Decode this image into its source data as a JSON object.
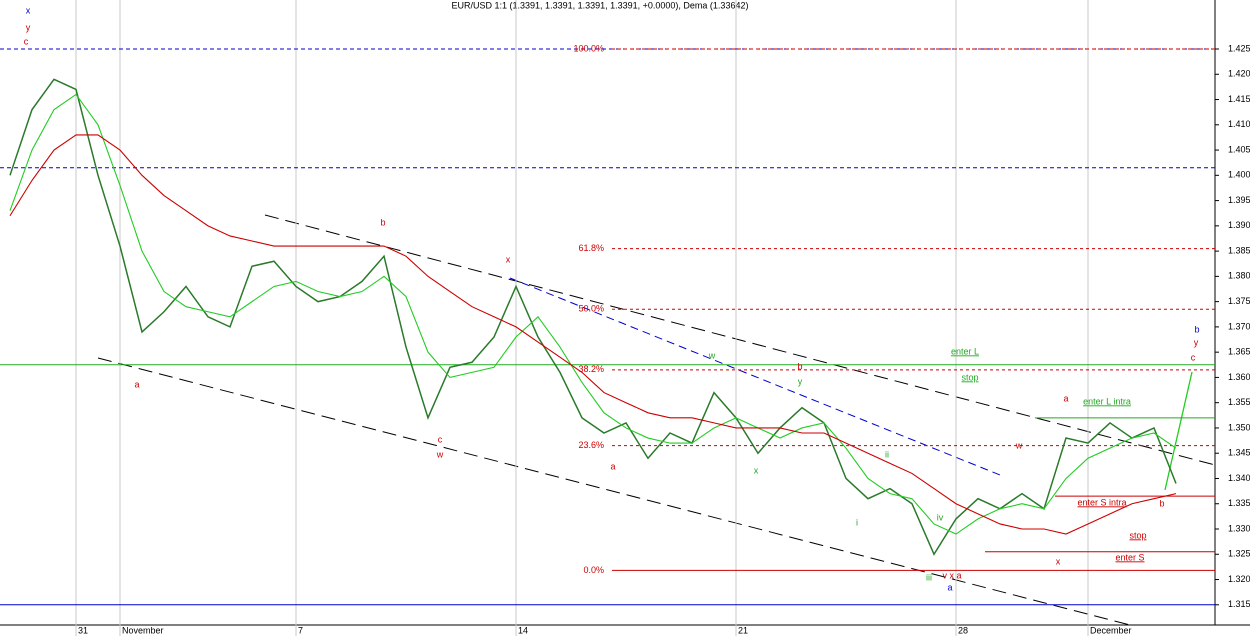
{
  "chart_data": {
    "type": "line",
    "title": "EUR/USD 1:1 (1.3391, 1.3391, 1.3391, 1.3391, +0.0000), Dema (1.33642)",
    "categories": [
      null,
      null,
      null,
      "31",
      null,
      "November",
      null,
      null,
      null,
      null,
      null,
      null,
      null,
      "7",
      null,
      null,
      null,
      null,
      null,
      null,
      null,
      null,
      null,
      "14",
      null,
      null,
      null,
      null,
      null,
      null,
      null,
      null,
      null,
      "21",
      null,
      null,
      null,
      null,
      null,
      null,
      null,
      null,
      null,
      "28",
      null,
      null,
      null,
      null,
      null,
      "December",
      null,
      null,
      null,
      null
    ],
    "series": [
      {
        "color": "#2a7a2a",
        "values": [
          1.4,
          1.413,
          1.419,
          1.417,
          1.4,
          1.386,
          1.369,
          1.373,
          1.378,
          1.372,
          1.37,
          1.382,
          1.383,
          1.378,
          1.375,
          1.376,
          1.379,
          1.384,
          1.366,
          1.352,
          1.362,
          1.363,
          1.368,
          1.378,
          1.368,
          1.361,
          1.352,
          1.349,
          1.351,
          1.344,
          1.349,
          1.347,
          1.357,
          1.352,
          1.345,
          1.35,
          1.354,
          1.351,
          1.34,
          1.336,
          1.338,
          1.335,
          1.325,
          1.332,
          1.336,
          1.334,
          1.337,
          1.334,
          1.348,
          1.347,
          1.351,
          1.348,
          1.35,
          1.339
        ]
      },
      {
        "color": "#22cc22",
        "values": [
          1.393,
          1.405,
          1.413,
          1.416,
          1.41,
          1.398,
          1.385,
          1.377,
          1.374,
          1.373,
          1.372,
          1.375,
          1.378,
          1.379,
          1.377,
          1.376,
          1.377,
          1.38,
          1.376,
          1.365,
          1.36,
          1.361,
          1.362,
          1.368,
          1.372,
          1.366,
          1.359,
          1.353,
          1.35,
          1.348,
          1.347,
          1.347,
          1.35,
          1.352,
          1.35,
          1.348,
          1.35,
          1.351,
          1.346,
          1.34,
          1.337,
          1.336,
          1.331,
          1.329,
          1.332,
          1.334,
          1.335,
          1.334,
          1.34,
          1.344,
          1.346,
          1.348,
          1.349,
          1.346
        ]
      },
      {
        "color": "#cc0000",
        "values": [
          1.392,
          1.399,
          1.405,
          1.408,
          1.408,
          1.405,
          1.4,
          1.396,
          1.393,
          1.39,
          1.388,
          1.387,
          1.386,
          1.386,
          1.386,
          1.386,
          1.386,
          1.386,
          1.384,
          1.38,
          1.377,
          1.374,
          1.372,
          1.37,
          1.367,
          1.364,
          1.361,
          1.357,
          1.355,
          1.353,
          1.352,
          1.352,
          1.351,
          1.35,
          1.35,
          1.35,
          1.349,
          1.349,
          1.347,
          1.345,
          1.343,
          1.341,
          1.338,
          1.335,
          1.333,
          1.331,
          1.33,
          1.33,
          1.329,
          1.331,
          1.333,
          1.335,
          1.336,
          1.337
        ]
      }
    ],
    "ylim": [
      1.311,
      1.4347
    ],
    "yticks": [
      1.315,
      {
        "value": 1.32,
        "label": "1.320"
      },
      1.325,
      {
        "value": 1.33,
        "label": "1.330"
      },
      1.335,
      {
        "value": 1.34,
        "label": "1.340"
      },
      1.345,
      {
        "value": 1.35,
        "label": "1.350"
      },
      1.355,
      {
        "value": 1.36,
        "label": "1.360"
      },
      1.365,
      {
        "value": 1.37,
        "label": "1.370"
      },
      1.375,
      {
        "value": 1.38,
        "label": "1.380"
      },
      1.385,
      {
        "value": 1.39,
        "label": "1.390"
      },
      1.395,
      {
        "value": 1.4,
        "label": "1.400"
      },
      1.405,
      {
        "value": 1.41,
        "label": "1.410"
      },
      1.415,
      {
        "value": 1.42,
        "label": "1.420"
      },
      1.425
    ],
    "levels": [
      {
        "value": 1.425,
        "color": "#0000cc",
        "style": "dashed"
      },
      {
        "value": 1.4015,
        "color": "#0000cc",
        "style": "dashed"
      },
      {
        "value": 1.315,
        "color": "#0000cc",
        "style": "solid"
      },
      {
        "value": 1.3625,
        "color": "#22aa22",
        "style": "solid"
      },
      {
        "label": "100.0%",
        "value": 1.425,
        "color": "#cc0000",
        "style": "dotted"
      },
      {
        "label": "61.8%",
        "value": 1.3855,
        "color": "#cc0000",
        "style": "dotted"
      },
      {
        "label": "50.0%",
        "value": 1.3735,
        "color": "#cc0000",
        "style": "dotted"
      },
      {
        "label": "38.2%",
        "value": 1.3615,
        "color": "#cc0000",
        "style": "dotted"
      },
      {
        "label": "23.6%",
        "value": 1.3465,
        "color": "#cc0000",
        "style": "dotted"
      },
      {
        "label": "0.0%",
        "value": 1.3218,
        "color": "#cc0000",
        "style": "solid"
      },
      {
        "value": 1.3365,
        "color": "#cc0000",
        "style": "solid"
      },
      {
        "value": 1.3255,
        "color": "#cc0000",
        "style": "solid"
      },
      {
        "value": 1.352,
        "color": "#22aa22",
        "style": "solid"
      }
    ],
    "annotations": [
      "x",
      "y",
      "c",
      "a",
      "b",
      "c",
      "w",
      "x",
      "a",
      "w",
      "x",
      "b",
      "y",
      "ii",
      "i",
      "iv",
      "iii",
      "v x a",
      "a",
      "w",
      "x",
      "a",
      "b",
      "b",
      "y",
      "c",
      "enter L",
      "stop",
      "enter L intra",
      "enter S intra",
      "stop",
      "enter S"
    ]
  }
}
